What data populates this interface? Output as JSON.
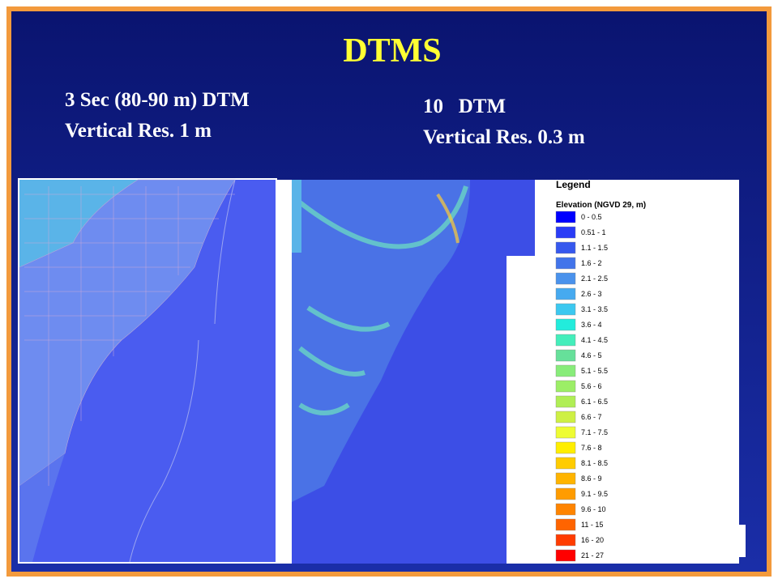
{
  "title": "DTMS",
  "left_caption": {
    "line1": "3 Sec (80-90 m) DTM",
    "line2": "Vertical Res. 1 m"
  },
  "right_caption": {
    "line1": "10   DTM",
    "line2": "Vertical Res. 0.3 m"
  },
  "legend": {
    "title": "Legend",
    "subtitle": "Elevation (NGVD 29, m)",
    "items": [
      {
        "label": "0 - 0.5",
        "color": "#0000ff"
      },
      {
        "label": "0.51 - 1",
        "color": "#2a3cf6"
      },
      {
        "label": "1.1 - 1.5",
        "color": "#3658ee"
      },
      {
        "label": "1.6 - 2",
        "color": "#4274ea"
      },
      {
        "label": "2.1 - 2.5",
        "color": "#4a92ec"
      },
      {
        "label": "2.6 - 3",
        "color": "#46aaf0"
      },
      {
        "label": "3.1 - 3.5",
        "color": "#3cc8f0"
      },
      {
        "label": "3.6 - 4",
        "color": "#22ecdc"
      },
      {
        "label": "4.1 - 4.5",
        "color": "#44eebb"
      },
      {
        "label": "4.6 - 5",
        "color": "#66e09a"
      },
      {
        "label": "5.1 - 5.5",
        "color": "#88ec7a"
      },
      {
        "label": "5.6 - 6",
        "color": "#9cee66"
      },
      {
        "label": "6.1 - 6.5",
        "color": "#b0ee55"
      },
      {
        "label": "6.6 - 7",
        "color": "#cef044"
      },
      {
        "label": "7.1 - 7.5",
        "color": "#eefc33"
      },
      {
        "label": "7.6 - 8",
        "color": "#ffee00"
      },
      {
        "label": "8.1 - 8.5",
        "color": "#ffcc00"
      },
      {
        "label": "8.6 - 9",
        "color": "#ffb400"
      },
      {
        "label": "9.1 - 9.5",
        "color": "#ff9c00"
      },
      {
        "label": "9.6 - 10",
        "color": "#ff8400"
      },
      {
        "label": "11 - 15",
        "color": "#ff6400"
      },
      {
        "label": "16 - 20",
        "color": "#ff3c00"
      },
      {
        "label": "21 - 27",
        "color": "#ff0000"
      }
    ]
  }
}
